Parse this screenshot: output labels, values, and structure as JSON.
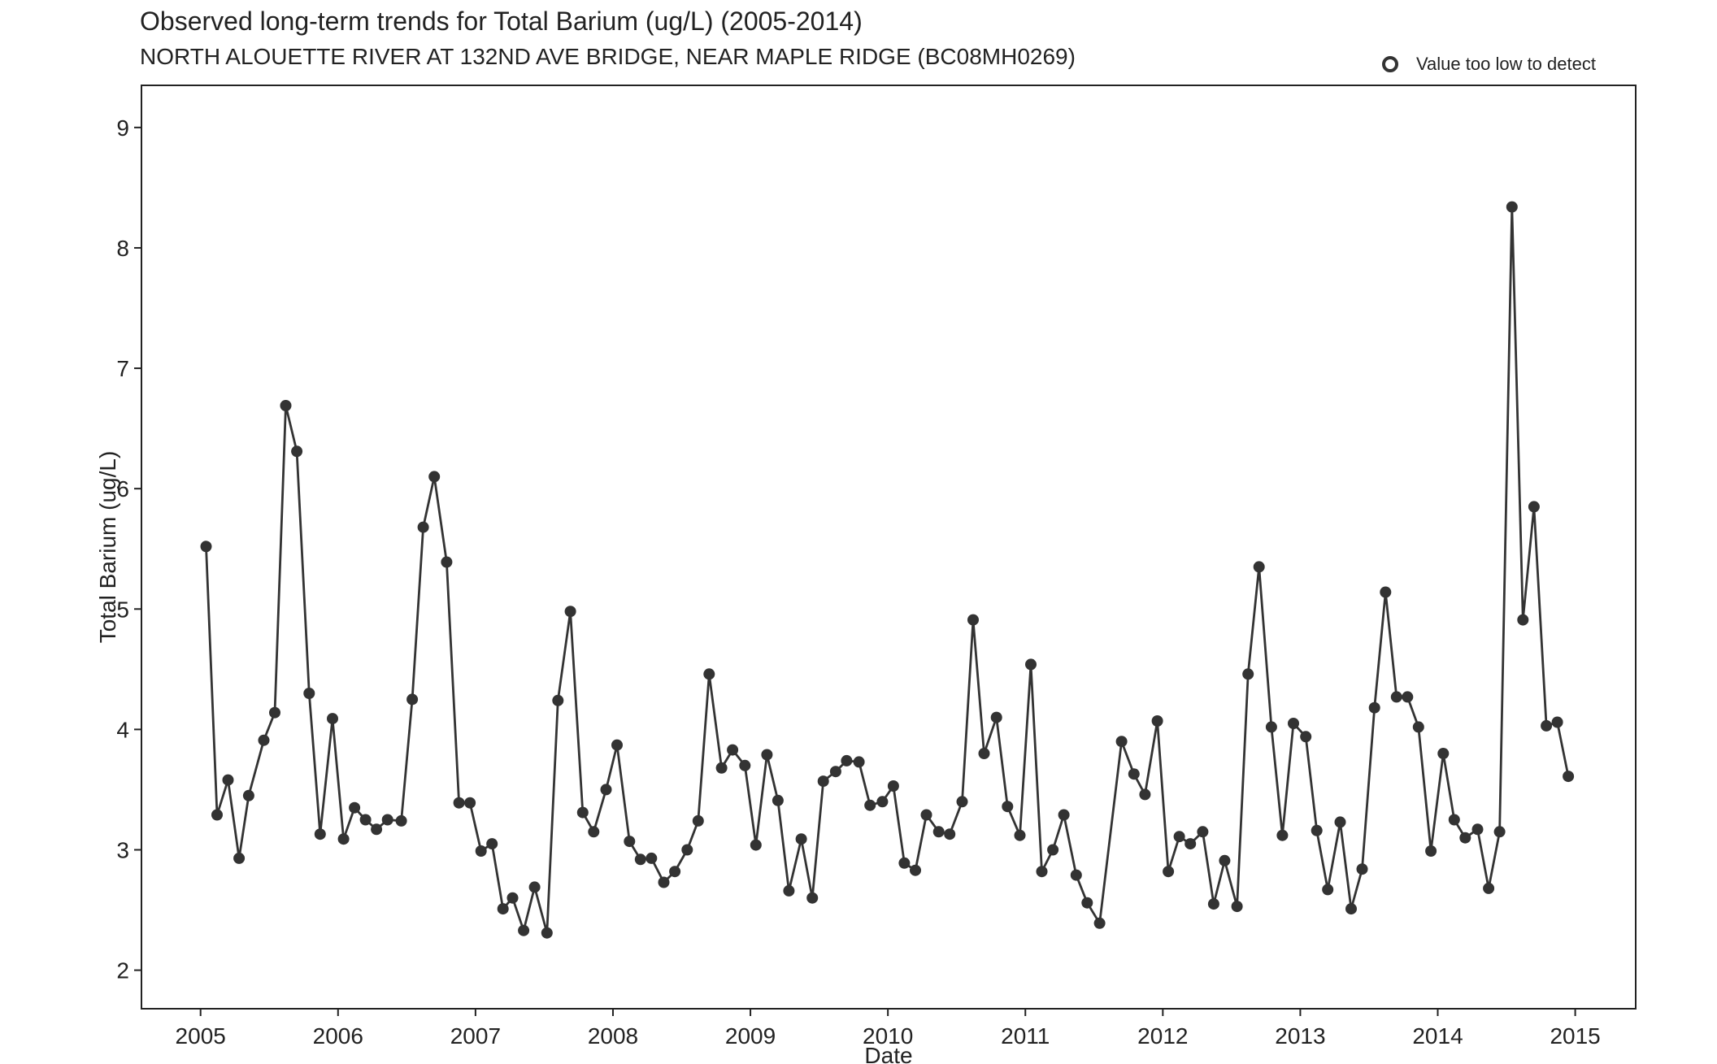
{
  "chart_data": {
    "type": "line",
    "title": "Observed long-term trends for Total Barium (ug/L) (2005-2014)",
    "subtitle": "NORTH ALOUETTE RIVER AT 132ND AVE BRIDGE, NEAR MAPLE RIDGE (BC08MH0269)",
    "xlabel": "Date",
    "ylabel": "Total Barium (ug/L)",
    "xlim": [
      2004.57,
      2015.44
    ],
    "ylim": [
      1.68,
      9.35
    ],
    "x_ticks": [
      2005,
      2006,
      2007,
      2008,
      2009,
      2010,
      2011,
      2012,
      2013,
      2014,
      2015
    ],
    "y_ticks": [
      2,
      3,
      4,
      5,
      6,
      7,
      8,
      9
    ],
    "grid": false,
    "legend": {
      "position": "top-right",
      "entries": [
        {
          "label": "Value too low to detect",
          "marker": "open-circle"
        }
      ]
    },
    "colors": {
      "line": "#333333",
      "points": "#333333",
      "frame": "#222222"
    },
    "series": [
      {
        "x": [
          2005.04,
          2005.12,
          2005.2,
          2005.28,
          2005.35,
          2005.46,
          2005.54,
          2005.62,
          2005.7,
          2005.79,
          2005.87,
          2005.96,
          2006.04,
          2006.12,
          2006.2,
          2006.28,
          2006.36,
          2006.46,
          2006.54,
          2006.62,
          2006.7,
          2006.79,
          2006.88,
          2006.96,
          2007.04,
          2007.12,
          2007.2,
          2007.27,
          2007.35,
          2007.43,
          2007.52,
          2007.6,
          2007.69,
          2007.78,
          2007.86,
          2007.95,
          2008.03,
          2008.12,
          2008.2,
          2008.28,
          2008.37,
          2008.45,
          2008.54,
          2008.62,
          2008.7,
          2008.79,
          2008.87,
          2008.96,
          2009.04,
          2009.12,
          2009.2,
          2009.28,
          2009.37,
          2009.45,
          2009.53,
          2009.62,
          2009.7,
          2009.79,
          2009.87,
          2009.96,
          2010.04,
          2010.12,
          2010.2,
          2010.28,
          2010.37,
          2010.45,
          2010.54,
          2010.62,
          2010.7,
          2010.79,
          2010.87,
          2010.96,
          2011.04,
          2011.12,
          2011.2,
          2011.28,
          2011.37,
          2011.45,
          2011.54,
          2011.7,
          2011.79,
          2011.87,
          2011.96,
          2012.04,
          2012.12,
          2012.2,
          2012.29,
          2012.37,
          2012.45,
          2012.54,
          2012.62,
          2012.7,
          2012.79,
          2012.87,
          2012.95,
          2013.04,
          2013.12,
          2013.2,
          2013.29,
          2013.37,
          2013.45,
          2013.54,
          2013.62,
          2013.7,
          2013.78,
          2013.86,
          2013.95,
          2014.04,
          2014.12,
          2014.2,
          2014.29,
          2014.37,
          2014.45,
          2014.54,
          2014.62,
          2014.7,
          2014.79,
          2014.87,
          2014.95
        ],
        "y": [
          5.52,
          3.29,
          3.58,
          2.93,
          3.45,
          3.91,
          4.14,
          6.69,
          6.31,
          4.3,
          3.13,
          4.09,
          3.09,
          3.35,
          3.25,
          3.17,
          3.25,
          3.24,
          4.25,
          5.68,
          6.1,
          5.39,
          3.39,
          3.39,
          2.99,
          3.05,
          2.51,
          2.6,
          2.33,
          2.69,
          2.31,
          4.24,
          4.98,
          3.31,
          3.15,
          3.5,
          3.87,
          3.07,
          2.92,
          2.93,
          2.73,
          2.82,
          3.0,
          3.24,
          4.46,
          3.68,
          3.83,
          3.7,
          3.04,
          3.79,
          3.41,
          2.66,
          3.09,
          2.6,
          3.57,
          3.65,
          3.74,
          3.73,
          3.37,
          3.4,
          3.53,
          2.89,
          2.83,
          3.29,
          3.15,
          3.13,
          3.4,
          4.91,
          3.8,
          4.1,
          3.36,
          3.12,
          4.54,
          2.82,
          3.0,
          3.29,
          2.79,
          2.56,
          2.39,
          3.9,
          3.63,
          3.46,
          4.07,
          2.82,
          3.11,
          3.05,
          3.15,
          2.55,
          2.91,
          2.53,
          4.46,
          5.35,
          4.02,
          3.12,
          4.05,
          3.94,
          3.16,
          2.67,
          3.23,
          2.51,
          2.84,
          4.18,
          5.14,
          4.27,
          4.27,
          4.02,
          2.99,
          3.8,
          3.25,
          3.1,
          3.17,
          2.68,
          3.15,
          8.34,
          4.91,
          5.85,
          4.03,
          4.06,
          3.61
        ]
      }
    ]
  }
}
